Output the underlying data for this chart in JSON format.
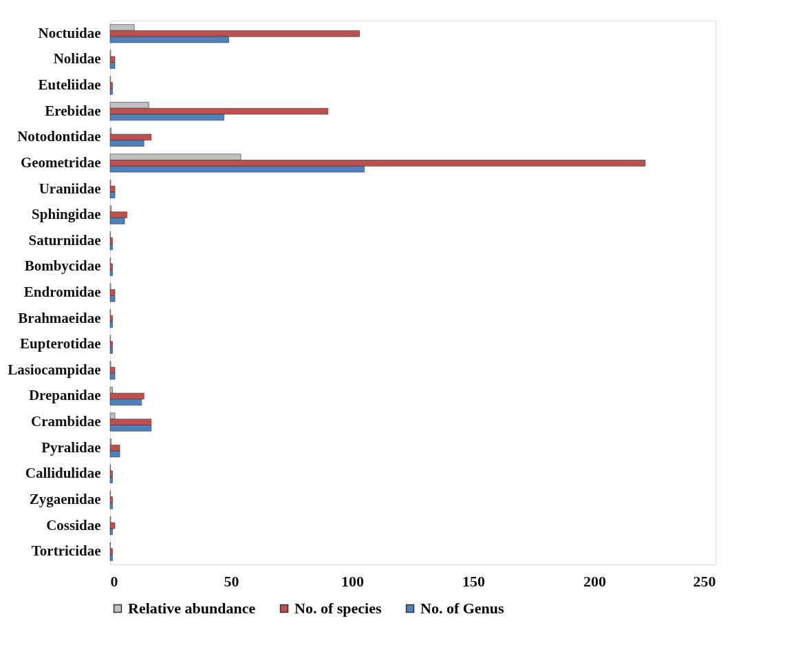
{
  "chart_data": {
    "type": "bar",
    "orientation": "horizontal",
    "categories": [
      "Noctuidae",
      "Nolidae",
      "Euteliidae",
      "Erebidae",
      "Notodontidae",
      "Geometridae",
      "Uraniidae",
      "Sphingidae",
      "Saturniidae",
      "Bombycidae",
      "Endromidae",
      "Brahmaeidae",
      "Eupterotidae",
      "Lasiocampidae",
      "Drepanidae",
      "Crambidae",
      "Pyralidae",
      "Callidulidae",
      "Zygaenidae",
      "Cossidae",
      "Tortricidae"
    ],
    "series": [
      {
        "name": "Relative abundance",
        "color": "#c0c0c0",
        "values": [
          10,
          0.3,
          0.2,
          16,
          0.5,
          54,
          0.3,
          0.5,
          0.2,
          0.2,
          0.3,
          0.2,
          0.2,
          0.3,
          1,
          2,
          0.5,
          0.2,
          0.2,
          0.3,
          0.2
        ]
      },
      {
        "name": "No. of species",
        "color": "#c0504d",
        "values": [
          103,
          2,
          1,
          90,
          17,
          221,
          2,
          7,
          1,
          1,
          2,
          1,
          1,
          2,
          14,
          17,
          4,
          1,
          1,
          2,
          1
        ]
      },
      {
        "name": "No. of Genus",
        "color": "#4f81bd",
        "values": [
          49,
          2,
          1,
          47,
          14,
          105,
          2,
          6,
          1,
          1,
          2,
          1,
          1,
          2,
          13,
          17,
          4,
          1,
          1,
          1,
          1
        ]
      }
    ],
    "xlim": [
      0,
      250
    ],
    "xticks": [
      0,
      50,
      100,
      150,
      200,
      250
    ],
    "grid": false,
    "legend": "bottom"
  }
}
